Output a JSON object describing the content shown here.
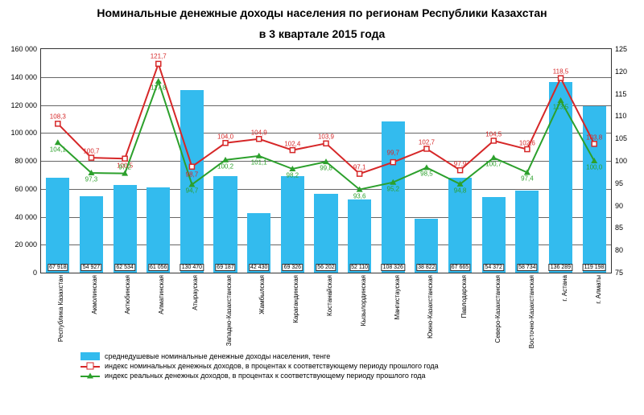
{
  "title_line1": "Номинальные денежные доходы населения по регионам Республики Казахстан",
  "title_line2": "в 3 квартале 2015 года",
  "y_left": {
    "min": 0,
    "max": 160000,
    "step": 20000
  },
  "y_right": {
    "min": 75,
    "max": 125,
    "step": 5
  },
  "bar_color": "#33bbee",
  "red_color": "#d62728",
  "green_color": "#2ca02c",
  "grid_color": "#666666",
  "categories": [
    "Республика Казахстан",
    "Акмолинская",
    "Актюбинская",
    "Алматинская",
    "Атырауская",
    "Западно-Казахстанская",
    "Жамбылская",
    "Карагандинская",
    "Костанайская",
    "Кызылординская",
    "Мангистауская",
    "Южно-Казахстанская",
    "Павлодарская",
    "Северо-Казахстанская",
    "Восточно-Казахстанская",
    "г. Астана",
    "г. Алматы"
  ],
  "bars": [
    67918,
    54927,
    62534,
    61056,
    130470,
    69187,
    42430,
    69326,
    56202,
    52110,
    108326,
    38822,
    67665,
    54372,
    58734,
    136289,
    119198
  ],
  "bar_labels": [
    "67 918",
    "54 927",
    "62 534",
    "61 056",
    "130 470",
    "69 187",
    "42 430",
    "69 326",
    "56 202",
    "52 110",
    "108 326",
    "38 822",
    "67 665",
    "54 372",
    "58 734",
    "136 289",
    "119 198"
  ],
  "line_red": [
    108.3,
    100.7,
    100.5,
    121.7,
    98.7,
    104.0,
    104.9,
    102.4,
    103.9,
    97.1,
    99.7,
    102.7,
    97.9,
    104.5,
    102.6,
    118.5,
    103.8
  ],
  "line_green": [
    104.1,
    97.3,
    97.2,
    117.8,
    94.7,
    100.2,
    101.1,
    98.2,
    99.8,
    93.6,
    95.2,
    98.5,
    94.8,
    100.7,
    97.4,
    113.5,
    100.0
  ],
  "red_label_dy": [
    -9,
    -8,
    9,
    -9,
    10,
    -8,
    -8,
    -8,
    -8,
    -8,
    -12,
    -8,
    -8,
    -8,
    -8,
    -8,
    -8
  ],
  "green_label_dy": [
    9,
    8,
    -8,
    8,
    8,
    8,
    8,
    8,
    8,
    8,
    8,
    8,
    8,
    8,
    8,
    8,
    8
  ],
  "legend": {
    "bar": "среднедушевые номинальные денежные доходы населения, тенге",
    "red": "индекс номинальных денежных доходов, в процентах к соответствующему периоду прошлого года",
    "green": "индекс реальных денежных доходов, в процентах к соответствующему периоду прошлого года"
  }
}
